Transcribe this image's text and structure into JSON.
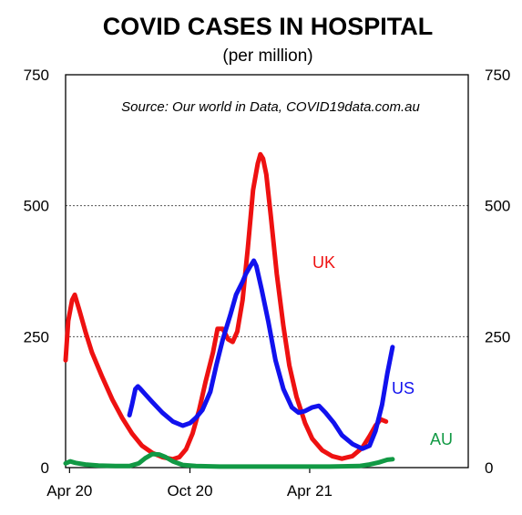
{
  "chart_data": {
    "type": "line",
    "title": "COVID CASES IN HOSPITAL",
    "subtitle": "(per million)",
    "annotation": "Source: Our world in Data, COVID19data.com.au",
    "xlabel": "",
    "ylabel": "",
    "ylim": [
      0,
      750
    ],
    "y_ticks": [
      0,
      250,
      500,
      750
    ],
    "x_ticks": [
      "Apr 20",
      "Oct 20",
      "Apr 21"
    ],
    "grid": "horizontal dotted at 250 and 500",
    "series": [
      {
        "name": "UK",
        "color": "#ee1111",
        "points": [
          [
            "2020-03-26",
            205
          ],
          [
            "2020-03-30",
            280
          ],
          [
            "2020-04-05",
            320
          ],
          [
            "2020-04-09",
            330
          ],
          [
            "2020-04-16",
            300
          ],
          [
            "2020-04-25",
            260
          ],
          [
            "2020-05-05",
            220
          ],
          [
            "2020-05-20",
            175
          ],
          [
            "2020-06-05",
            130
          ],
          [
            "2020-06-20",
            95
          ],
          [
            "2020-07-05",
            65
          ],
          [
            "2020-07-20",
            42
          ],
          [
            "2020-08-05",
            28
          ],
          [
            "2020-08-20",
            20
          ],
          [
            "2020-09-05",
            16
          ],
          [
            "2020-09-15",
            20
          ],
          [
            "2020-09-25",
            35
          ],
          [
            "2020-10-05",
            65
          ],
          [
            "2020-10-15",
            110
          ],
          [
            "2020-10-25",
            165
          ],
          [
            "2020-11-05",
            220
          ],
          [
            "2020-11-12",
            265
          ],
          [
            "2020-11-20",
            265
          ],
          [
            "2020-11-28",
            245
          ],
          [
            "2020-12-05",
            240
          ],
          [
            "2020-12-12",
            260
          ],
          [
            "2020-12-20",
            320
          ],
          [
            "2020-12-28",
            420
          ],
          [
            "2021-01-05",
            530
          ],
          [
            "2021-01-12",
            580
          ],
          [
            "2021-01-16",
            598
          ],
          [
            "2021-01-20",
            590
          ],
          [
            "2021-01-25",
            560
          ],
          [
            "2021-02-01",
            480
          ],
          [
            "2021-02-10",
            370
          ],
          [
            "2021-02-20",
            270
          ],
          [
            "2021-03-01",
            195
          ],
          [
            "2021-03-12",
            135
          ],
          [
            "2021-03-25",
            85
          ],
          [
            "2021-04-05",
            55
          ],
          [
            "2021-04-20",
            33
          ],
          [
            "2021-05-05",
            22
          ],
          [
            "2021-05-20",
            17
          ],
          [
            "2021-06-05",
            22
          ],
          [
            "2021-06-20",
            38
          ],
          [
            "2021-07-01",
            60
          ],
          [
            "2021-07-10",
            80
          ],
          [
            "2021-07-18",
            92
          ],
          [
            "2021-07-26",
            88
          ]
        ]
      },
      {
        "name": "US",
        "color": "#1111ee",
        "points": [
          [
            "2020-07-01",
            100
          ],
          [
            "2020-07-05",
            120
          ],
          [
            "2020-07-10",
            150
          ],
          [
            "2020-07-14",
            155
          ],
          [
            "2020-07-18",
            150
          ],
          [
            "2020-07-25",
            140
          ],
          [
            "2020-08-05",
            125
          ],
          [
            "2020-08-20",
            105
          ],
          [
            "2020-09-05",
            88
          ],
          [
            "2020-09-20",
            80
          ],
          [
            "2020-10-01",
            85
          ],
          [
            "2020-10-10",
            95
          ],
          [
            "2020-10-20",
            110
          ],
          [
            "2020-11-01",
            145
          ],
          [
            "2020-11-10",
            195
          ],
          [
            "2020-11-20",
            245
          ],
          [
            "2020-12-01",
            290
          ],
          [
            "2020-12-10",
            330
          ],
          [
            "2020-12-20",
            355
          ],
          [
            "2020-12-25",
            370
          ],
          [
            "2021-01-01",
            385
          ],
          [
            "2021-01-06",
            395
          ],
          [
            "2021-01-10",
            385
          ],
          [
            "2021-01-18",
            340
          ],
          [
            "2021-01-28",
            280
          ],
          [
            "2021-02-08",
            205
          ],
          [
            "2021-02-20",
            150
          ],
          [
            "2021-03-05",
            115
          ],
          [
            "2021-03-15",
            105
          ],
          [
            "2021-03-25",
            108
          ],
          [
            "2021-04-05",
            115
          ],
          [
            "2021-04-15",
            118
          ],
          [
            "2021-04-25",
            105
          ],
          [
            "2021-05-08",
            85
          ],
          [
            "2021-05-20",
            62
          ],
          [
            "2021-06-05",
            45
          ],
          [
            "2021-06-20",
            36
          ],
          [
            "2021-07-01",
            42
          ],
          [
            "2021-07-10",
            70
          ],
          [
            "2021-07-20",
            120
          ],
          [
            "2021-07-28",
            180
          ],
          [
            "2021-08-05",
            230
          ]
        ]
      },
      {
        "name": "AU",
        "color": "#119944",
        "points": [
          [
            "2020-03-26",
            8
          ],
          [
            "2020-04-02",
            12
          ],
          [
            "2020-04-10",
            9
          ],
          [
            "2020-04-25",
            6
          ],
          [
            "2020-05-15",
            4
          ],
          [
            "2020-06-10",
            3
          ],
          [
            "2020-07-01",
            3
          ],
          [
            "2020-07-15",
            8
          ],
          [
            "2020-07-25",
            18
          ],
          [
            "2020-08-05",
            26
          ],
          [
            "2020-08-15",
            25
          ],
          [
            "2020-08-25",
            20
          ],
          [
            "2020-09-05",
            12
          ],
          [
            "2020-09-20",
            5
          ],
          [
            "2020-10-10",
            3
          ],
          [
            "2020-11-15",
            2
          ],
          [
            "2021-01-01",
            2
          ],
          [
            "2021-03-01",
            2
          ],
          [
            "2021-05-01",
            2
          ],
          [
            "2021-06-15",
            3
          ],
          [
            "2021-07-01",
            6
          ],
          [
            "2021-07-15",
            10
          ],
          [
            "2021-07-28",
            15
          ],
          [
            "2021-08-05",
            16
          ]
        ]
      }
    ]
  }
}
